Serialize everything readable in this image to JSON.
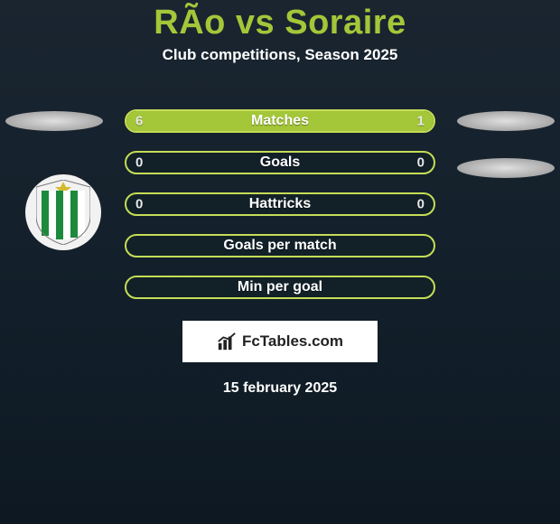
{
  "title": "RÃ­o vs Soraire",
  "subtitle": "Club competitions, Season 2025",
  "colors": {
    "accent": "#a4c639",
    "accent_dark": "#8fb02e",
    "border": "#c5dd56",
    "empty_fill": "#122028",
    "text_light": "#ffffff",
    "text_value": "#e8e8e8",
    "brand_text": "#222222"
  },
  "bars": [
    {
      "label": "Matches",
      "left": "6",
      "right": "1",
      "left_pct": 77,
      "right_pct": 23,
      "show_values": true
    },
    {
      "label": "Goals",
      "left": "0",
      "right": "0",
      "left_pct": 0,
      "right_pct": 0,
      "show_values": true
    },
    {
      "label": "Hattricks",
      "left": "0",
      "right": "0",
      "left_pct": 0,
      "right_pct": 0,
      "show_values": true
    },
    {
      "label": "Goals per match",
      "left": "",
      "right": "",
      "left_pct": 0,
      "right_pct": 0,
      "show_values": false
    },
    {
      "label": "Min per goal",
      "left": "",
      "right": "",
      "left_pct": 0,
      "right_pct": 0,
      "show_values": false
    }
  ],
  "brand": "FcTables.com",
  "date": "15 february 2025",
  "club_colors": {
    "stripe_green": "#1c8a3c",
    "stripe_white": "#ffffff",
    "star": "#d4bb2e"
  }
}
